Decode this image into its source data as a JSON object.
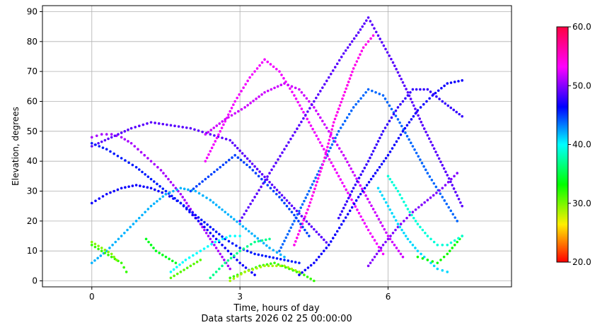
{
  "chart_data": {
    "type": "scatter",
    "title": "",
    "xlabel": "Time, hours of day",
    "xlabel_note": "Data starts 2026 02 25 00:00:00",
    "ylabel": "Elevation, degrees",
    "xlim": [
      -1,
      8.5
    ],
    "ylim": [
      -2,
      92
    ],
    "xticks": [
      0,
      3,
      6
    ],
    "yticks": [
      0,
      10,
      20,
      30,
      40,
      50,
      60,
      70,
      80,
      90
    ],
    "grid": true,
    "marker": "dot",
    "colorbar": {
      "min": 20.0,
      "max": 60.0,
      "ticks": [
        "20.0",
        "30.0",
        "40.0",
        "50.0",
        "60.0"
      ],
      "colormap": "hsv",
      "colors": [
        "#ff0000",
        "#ffee00",
        "#00ff00",
        "#00ffff",
        "#0000ff",
        "#ff00ff",
        "#ff0040"
      ]
    },
    "series": [
      {
        "points": [
          [
            0,
            48
          ],
          [
            0.2,
            49
          ],
          [
            0.4,
            49
          ],
          [
            0.6,
            48
          ],
          [
            0.8,
            46
          ],
          [
            1.0,
            43
          ],
          [
            1.2,
            40
          ],
          [
            1.4,
            37
          ],
          [
            1.6,
            33
          ],
          [
            1.8,
            29
          ],
          [
            2.0,
            24
          ],
          [
            2.2,
            19
          ],
          [
            2.4,
            14
          ],
          [
            2.6,
            9
          ],
          [
            2.8,
            4
          ]
        ],
        "cvalue": 51
      },
      {
        "points": [
          [
            0,
            26
          ],
          [
            0.3,
            29
          ],
          [
            0.6,
            31
          ],
          [
            0.9,
            32
          ],
          [
            1.2,
            31
          ],
          [
            1.5,
            29
          ],
          [
            1.8,
            26
          ],
          [
            2.1,
            21
          ],
          [
            2.4,
            16
          ],
          [
            2.7,
            11
          ],
          [
            3.0,
            6
          ],
          [
            3.3,
            2
          ]
        ],
        "cvalue": 47
      },
      {
        "points": [
          [
            0,
            45
          ],
          [
            0.4,
            48
          ],
          [
            0.8,
            51
          ],
          [
            1.2,
            53
          ],
          [
            1.6,
            52
          ],
          [
            2.0,
            51
          ],
          [
            2.4,
            49
          ],
          [
            2.8,
            47
          ],
          [
            3.2,
            40
          ],
          [
            3.6,
            33
          ],
          [
            4.0,
            26
          ],
          [
            4.4,
            19
          ],
          [
            4.8,
            12
          ]
        ],
        "cvalue": 49
      },
      {
        "points": [
          [
            0,
            46
          ],
          [
            0.3,
            44
          ],
          [
            0.6,
            41
          ],
          [
            0.9,
            38
          ],
          [
            1.2,
            34
          ],
          [
            1.5,
            30
          ],
          [
            1.8,
            26
          ],
          [
            2.1,
            22
          ],
          [
            2.4,
            18
          ],
          [
            2.7,
            14
          ],
          [
            3.0,
            11
          ],
          [
            3.3,
            9
          ],
          [
            3.6,
            8
          ],
          [
            3.9,
            7
          ],
          [
            4.2,
            6
          ]
        ],
        "cvalue": 46
      },
      {
        "points": [
          [
            0,
            6
          ],
          [
            0.3,
            10
          ],
          [
            0.6,
            15
          ],
          [
            0.9,
            20
          ],
          [
            1.2,
            25
          ],
          [
            1.5,
            29
          ],
          [
            1.8,
            31
          ],
          [
            2.1,
            30
          ],
          [
            2.4,
            27
          ],
          [
            2.7,
            23
          ],
          [
            3.0,
            19
          ],
          [
            3.3,
            15
          ],
          [
            3.6,
            11
          ],
          [
            3.9,
            8
          ]
        ],
        "cvalue": 42
      },
      {
        "points": [
          [
            0,
            12
          ],
          [
            0.2,
            10
          ],
          [
            0.4,
            8
          ],
          [
            0.6,
            6
          ],
          [
            0.7,
            3
          ]
        ],
        "cvalue": 32
      },
      {
        "points": [
          [
            0,
            13
          ],
          [
            0.2,
            11
          ],
          [
            0.4,
            9
          ],
          [
            0.5,
            7
          ]
        ],
        "cvalue": 30
      },
      {
        "points": [
          [
            1.6,
            1
          ],
          [
            1.8,
            3
          ],
          [
            2.0,
            5
          ],
          [
            2.2,
            7
          ]
        ],
        "cvalue": 31
      },
      {
        "points": [
          [
            1.6,
            3
          ],
          [
            1.9,
            7
          ],
          [
            2.2,
            10
          ],
          [
            2.5,
            13
          ],
          [
            2.8,
            15
          ],
          [
            3.0,
            15
          ]
        ],
        "cvalue": 40
      },
      {
        "points": [
          [
            2.4,
            1
          ],
          [
            2.7,
            6
          ],
          [
            3.0,
            10
          ],
          [
            3.3,
            13
          ],
          [
            3.6,
            14
          ]
        ],
        "cvalue": 37
      },
      {
        "points": [
          [
            2.8,
            1
          ],
          [
            3.1,
            3
          ],
          [
            3.4,
            5
          ],
          [
            3.7,
            6
          ],
          [
            4.0,
            4
          ],
          [
            4.3,
            2
          ],
          [
            4.5,
            0
          ]
        ],
        "cvalue": 32
      },
      {
        "points": [
          [
            2.3,
            40
          ],
          [
            2.6,
            50
          ],
          [
            2.9,
            60
          ],
          [
            3.2,
            68
          ],
          [
            3.5,
            74
          ],
          [
            3.8,
            70
          ],
          [
            4.1,
            62
          ],
          [
            4.4,
            53
          ],
          [
            4.7,
            44
          ],
          [
            5.0,
            35
          ],
          [
            5.3,
            26
          ],
          [
            5.6,
            17
          ],
          [
            5.9,
            9
          ]
        ],
        "cvalue": 53
      },
      {
        "points": [
          [
            2.3,
            49
          ],
          [
            2.7,
            54
          ],
          [
            3.1,
            58
          ],
          [
            3.5,
            63
          ],
          [
            3.9,
            66
          ],
          [
            4.2,
            64
          ],
          [
            4.5,
            58
          ],
          [
            4.8,
            50
          ],
          [
            5.1,
            42
          ],
          [
            5.4,
            33
          ],
          [
            5.7,
            24
          ],
          [
            6.0,
            15
          ],
          [
            6.3,
            8
          ]
        ],
        "cvalue": 52
      },
      {
        "points": [
          [
            3.0,
            20
          ],
          [
            3.3,
            28
          ],
          [
            3.6,
            36
          ],
          [
            3.9,
            44
          ],
          [
            4.2,
            52
          ],
          [
            4.5,
            60
          ],
          [
            4.8,
            68
          ],
          [
            5.1,
            76
          ],
          [
            5.4,
            83
          ],
          [
            5.6,
            88
          ],
          [
            5.8,
            82
          ],
          [
            6.1,
            73
          ],
          [
            6.4,
            63
          ],
          [
            6.7,
            52
          ],
          [
            7.0,
            42
          ],
          [
            7.3,
            32
          ],
          [
            7.5,
            25
          ]
        ],
        "cvalue": 49
      },
      {
        "points": [
          [
            3.8,
            10
          ],
          [
            4.1,
            20
          ],
          [
            4.4,
            30
          ],
          [
            4.7,
            40
          ],
          [
            5.0,
            50
          ],
          [
            5.3,
            58
          ],
          [
            5.6,
            64
          ],
          [
            5.9,
            62
          ],
          [
            6.2,
            54
          ],
          [
            6.5,
            45
          ],
          [
            6.8,
            36
          ],
          [
            7.1,
            28
          ],
          [
            7.4,
            20
          ]
        ],
        "cvalue": 44
      },
      {
        "points": [
          [
            4.1,
            12
          ],
          [
            4.4,
            25
          ],
          [
            4.7,
            40
          ],
          [
            4.9,
            53
          ],
          [
            5.1,
            62
          ],
          [
            5.3,
            71
          ],
          [
            5.5,
            78
          ],
          [
            5.7,
            82
          ]
        ],
        "cvalue": 54
      },
      {
        "points": [
          [
            4.2,
            2
          ],
          [
            4.5,
            6
          ],
          [
            4.8,
            12
          ],
          [
            5.1,
            20
          ],
          [
            5.4,
            28
          ],
          [
            5.7,
            35
          ],
          [
            6.0,
            42
          ],
          [
            6.3,
            50
          ],
          [
            6.6,
            57
          ],
          [
            6.9,
            62
          ],
          [
            7.2,
            66
          ],
          [
            7.5,
            67
          ]
        ],
        "cvalue": 47
      },
      {
        "points": [
          [
            5.0,
            21
          ],
          [
            5.3,
            31
          ],
          [
            5.6,
            40
          ],
          [
            5.9,
            50
          ],
          [
            6.2,
            58
          ],
          [
            6.5,
            64
          ],
          [
            6.8,
            64
          ],
          [
            7.1,
            60
          ],
          [
            7.5,
            55
          ]
        ],
        "cvalue": 48
      },
      {
        "points": [
          [
            5.6,
            5
          ],
          [
            5.9,
            12
          ],
          [
            6.2,
            18
          ],
          [
            6.5,
            23
          ],
          [
            6.8,
            27
          ],
          [
            7.1,
            31
          ],
          [
            7.4,
            36
          ]
        ],
        "cvalue": 50
      },
      {
        "points": [
          [
            5.8,
            31
          ],
          [
            6.0,
            25
          ],
          [
            6.2,
            19
          ],
          [
            6.4,
            14
          ],
          [
            6.6,
            10
          ],
          [
            6.8,
            7
          ],
          [
            7.0,
            4
          ],
          [
            7.2,
            3
          ]
        ],
        "cvalue": 41
      },
      {
        "points": [
          [
            6.6,
            8
          ],
          [
            6.8,
            7
          ],
          [
            7.0,
            6
          ],
          [
            7.2,
            9
          ],
          [
            7.4,
            13
          ],
          [
            7.5,
            15
          ]
        ],
        "cvalue": 33
      },
      {
        "points": [
          [
            6.0,
            35
          ],
          [
            6.2,
            30
          ],
          [
            6.4,
            24
          ],
          [
            6.6,
            19
          ],
          [
            6.8,
            15
          ],
          [
            7.0,
            12
          ],
          [
            7.2,
            12
          ],
          [
            7.5,
            15
          ]
        ],
        "cvalue": 39
      },
      {
        "points": [
          [
            2.8,
            0
          ],
          [
            3.1,
            3
          ],
          [
            3.5,
            5
          ],
          [
            3.9,
            5
          ],
          [
            4.2,
            3
          ]
        ],
        "cvalue": 29
      },
      {
        "points": [
          [
            1.1,
            14
          ],
          [
            1.3,
            10
          ],
          [
            1.5,
            8
          ],
          [
            1.7,
            6
          ]
        ],
        "cvalue": 34
      },
      {
        "points": [
          [
            2.0,
            30
          ],
          [
            2.3,
            34
          ],
          [
            2.6,
            38
          ],
          [
            2.9,
            42
          ],
          [
            3.2,
            38
          ],
          [
            3.5,
            33
          ],
          [
            3.8,
            28
          ],
          [
            4.1,
            22
          ],
          [
            4.4,
            15
          ]
        ],
        "cvalue": 45
      }
    ]
  }
}
